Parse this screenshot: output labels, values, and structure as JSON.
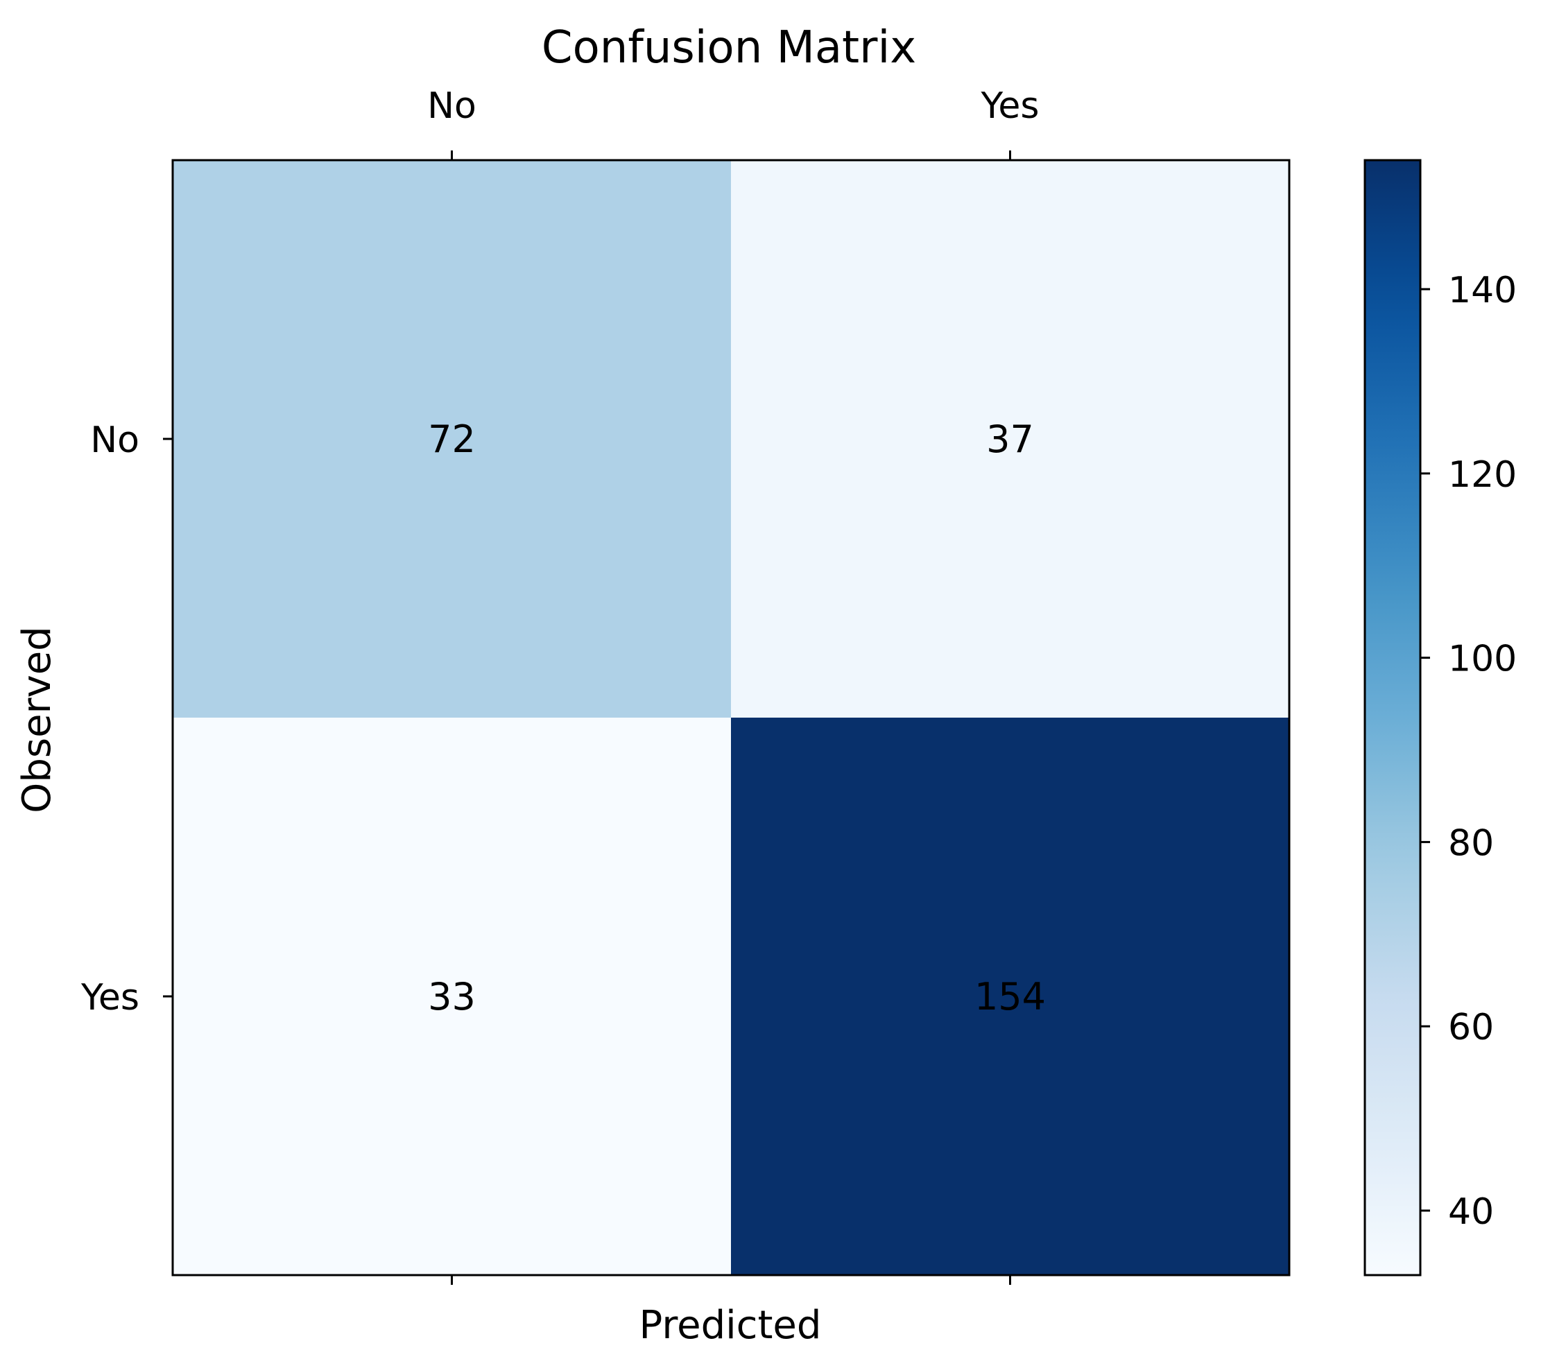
{
  "chart_data": {
    "type": "heatmap",
    "title": "Confusion Matrix",
    "xlabel": "Predicted",
    "ylabel": "Observed",
    "x_categories": [
      "No",
      "Yes"
    ],
    "y_categories": [
      "No",
      "Yes"
    ],
    "values": [
      [
        72,
        37
      ],
      [
        33,
        154
      ]
    ],
    "colormap": "Blues",
    "color_range": [
      33,
      154
    ],
    "colorbar": {
      "ticks": [
        40,
        60,
        80,
        100,
        120,
        140
      ],
      "labels": [
        "40",
        "60",
        "80",
        "100",
        "120",
        "140"
      ]
    },
    "x_tick_position": "top",
    "grid": false
  }
}
